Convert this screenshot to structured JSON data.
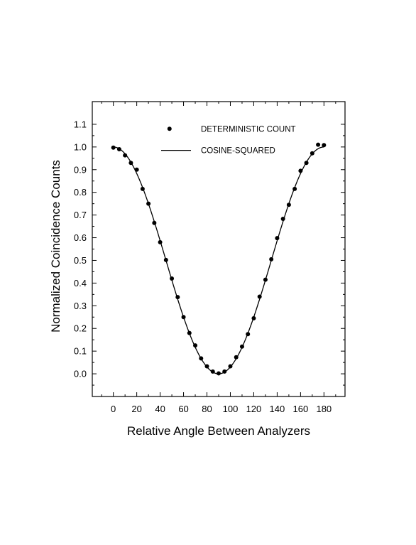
{
  "chart_data": {
    "type": "scatter",
    "title": "",
    "xlabel": "Relative Angle Between Analyzers",
    "ylabel": "Normalized Coincidence Counts",
    "xlim": [
      -18,
      198
    ],
    "ylim": [
      -0.1,
      1.2
    ],
    "xticks": [
      0,
      20,
      40,
      60,
      80,
      100,
      120,
      140,
      160,
      180
    ],
    "yticks": [
      0.0,
      0.1,
      0.2,
      0.3,
      0.4,
      0.5,
      0.6,
      0.7,
      0.8,
      0.9,
      1.0,
      1.1
    ],
    "x_tick_labels": [
      "0",
      "20",
      "40",
      "60",
      "80",
      "100",
      "120",
      "140",
      "160",
      "180"
    ],
    "y_tick_labels": [
      "0.0",
      "0.1",
      "0.2",
      "0.3",
      "0.4",
      "0.5",
      "0.6",
      "0.7",
      "0.8",
      "0.9",
      "1.0",
      "1.1"
    ],
    "grid": false,
    "legend_position": "top-center",
    "series": [
      {
        "name": "DETERMINISTIC  COUNT",
        "style": "markers",
        "color": "#000000",
        "points": [
          [
            0,
            0.997
          ],
          [
            5,
            0.99
          ],
          [
            10,
            0.963
          ],
          [
            15,
            0.93
          ],
          [
            20,
            0.9
          ],
          [
            25,
            0.815
          ],
          [
            30,
            0.75
          ],
          [
            35,
            0.665
          ],
          [
            40,
            0.58
          ],
          [
            45,
            0.502
          ],
          [
            50,
            0.42
          ],
          [
            55,
            0.338
          ],
          [
            60,
            0.25
          ],
          [
            65,
            0.18
          ],
          [
            70,
            0.125
          ],
          [
            75,
            0.068
          ],
          [
            80,
            0.033
          ],
          [
            85,
            0.01
          ],
          [
            90,
            0.002
          ],
          [
            95,
            0.01
          ],
          [
            100,
            0.033
          ],
          [
            105,
            0.073
          ],
          [
            110,
            0.12
          ],
          [
            115,
            0.175
          ],
          [
            120,
            0.245
          ],
          [
            125,
            0.34
          ],
          [
            130,
            0.415
          ],
          [
            135,
            0.505
          ],
          [
            140,
            0.598
          ],
          [
            145,
            0.683
          ],
          [
            150,
            0.745
          ],
          [
            155,
            0.815
          ],
          [
            160,
            0.895
          ],
          [
            165,
            0.93
          ],
          [
            170,
            0.972
          ],
          [
            175,
            1.01
          ],
          [
            180,
            1.008
          ]
        ]
      },
      {
        "name": "COSINE-SQUARED",
        "style": "line",
        "color": "#000000",
        "function": "cos^2(angle)"
      }
    ]
  }
}
